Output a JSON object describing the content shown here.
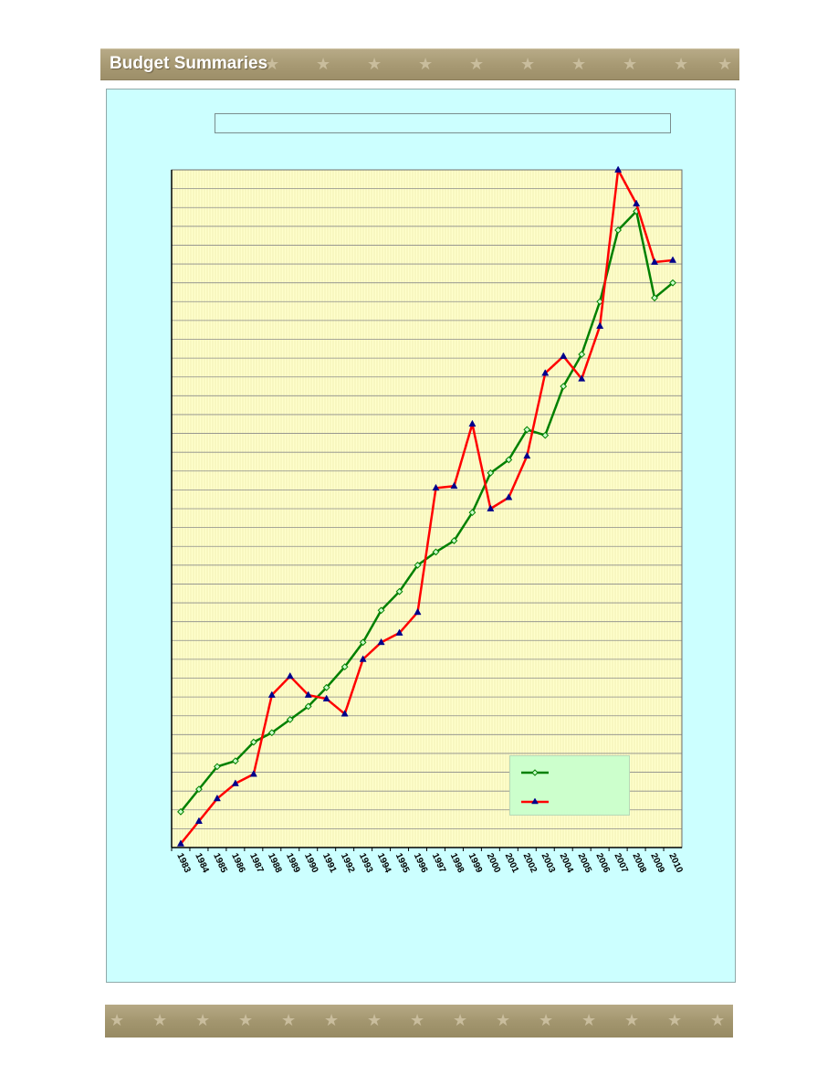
{
  "header": {
    "title": "Budget Summaries"
  },
  "chart_data": {
    "type": "line",
    "title": "",
    "xlabel": "",
    "ylabel": "",
    "ylim": [
      0,
      36
    ],
    "grid": true,
    "legend_position": "bottom-right",
    "x": [
      "1983",
      "1984",
      "1985",
      "1986",
      "1987",
      "1988",
      "1989",
      "1990",
      "1991",
      "1992",
      "1993",
      "1994",
      "1995",
      "1996",
      "1997",
      "1998",
      "1999",
      "2000",
      "2001",
      "2002",
      "2003",
      "2004",
      "2005",
      "2006",
      "2007",
      "2008",
      "2009",
      "2010"
    ],
    "series": [
      {
        "name": "",
        "color": "#008000",
        "marker": "diamond",
        "values": [
          1.9,
          3.1,
          4.3,
          4.6,
          5.6,
          6.1,
          6.8,
          7.5,
          8.5,
          9.6,
          10.9,
          12.6,
          13.6,
          15.0,
          15.7,
          16.3,
          17.8,
          19.9,
          20.6,
          22.2,
          21.9,
          24.5,
          26.2,
          29.0,
          32.8,
          33.8,
          29.2,
          30.0
        ]
      },
      {
        "name": "",
        "color": "#ff0000",
        "marker": "triangle",
        "values": [
          0.2,
          1.4,
          2.6,
          3.4,
          3.9,
          8.1,
          9.1,
          8.1,
          7.9,
          7.1,
          10.0,
          10.9,
          11.4,
          12.5,
          19.1,
          19.2,
          22.5,
          18.0,
          18.6,
          20.8,
          25.2,
          26.1,
          24.9,
          27.7,
          36.0,
          34.2,
          31.1,
          31.2
        ]
      }
    ]
  }
}
